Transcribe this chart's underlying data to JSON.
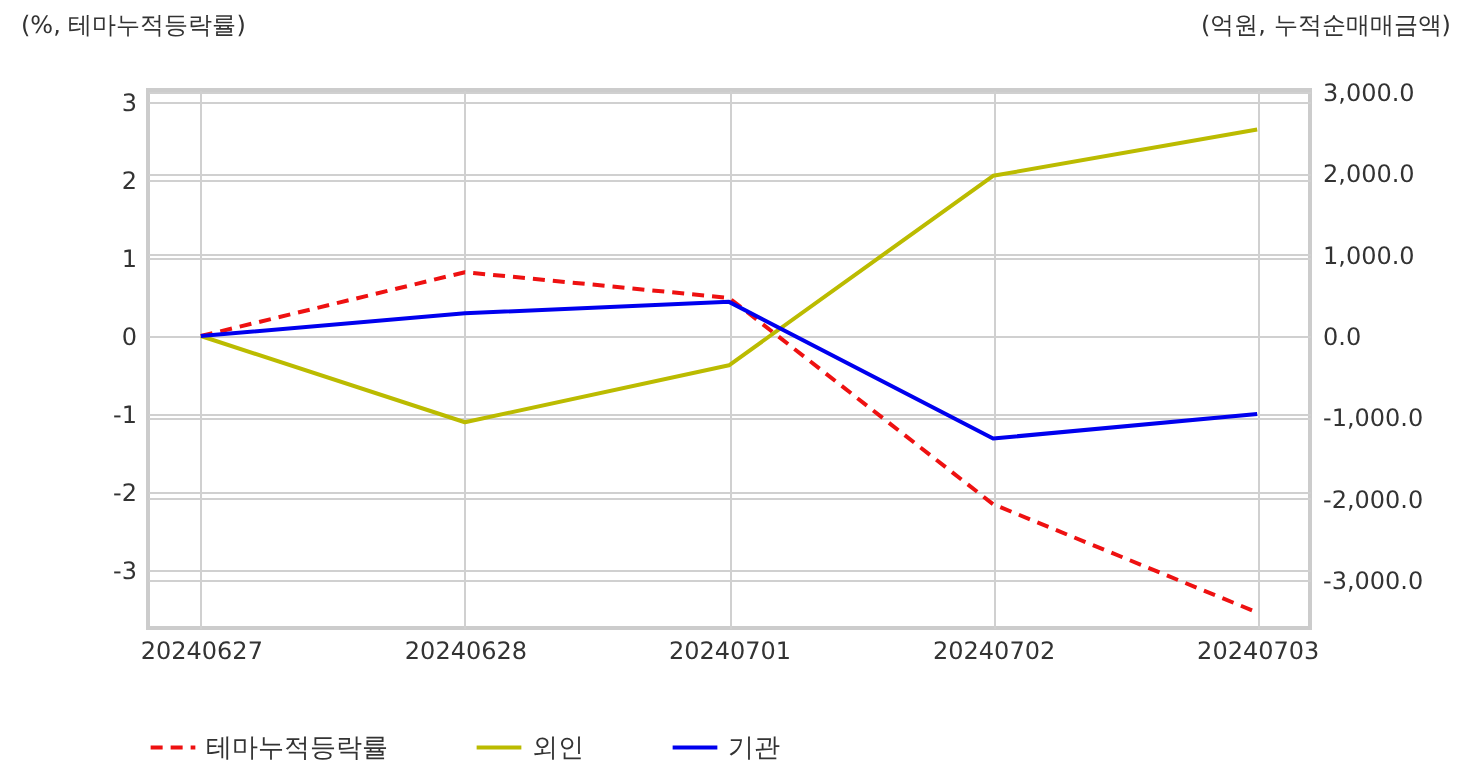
{
  "chart_data": {
    "type": "line",
    "ylabel": "(%, 테마누적등락률)",
    "y2label": "(억원, 누적순매매금액)",
    "categories": [
      "20240627",
      "20240628",
      "20240701",
      "20240702",
      "20240703"
    ],
    "series": [
      {
        "name": "테마누적등락률",
        "color": "#ee1111",
        "line_style": "dashed",
        "values": [
          0,
          0.82,
          0.49,
          -2.16,
          -3.55
        ]
      },
      {
        "name": "외인",
        "color": "#bbbb00",
        "axis": "y2",
        "line_style": "solid",
        "values": [
          0,
          -1060,
          -360,
          1970,
          2540
        ]
      },
      {
        "name": "기관",
        "color": "#0000ee",
        "axis": "y2",
        "line_style": "solid",
        "values": [
          0,
          280,
          420,
          -1260,
          -960
        ]
      }
    ],
    "ylim": [
      -3.75,
      3.16
    ],
    "yticks": [
      -3,
      -2,
      -1,
      0,
      1,
      2,
      3
    ],
    "y2lim": [
      -3590,
      3025
    ],
    "y2ticks": [
      {
        "value": -3000,
        "label": "-3,000.0"
      },
      {
        "value": -2000,
        "label": "-2,000.0"
      },
      {
        "value": -1000,
        "label": "-1,000.0"
      },
      {
        "value": 0,
        "label": "0.0"
      },
      {
        "value": 1000,
        "label": "1,000.0"
      },
      {
        "value": 2000,
        "label": "2,000.0"
      },
      {
        "value": 3000,
        "label": "3,000.0"
      }
    ],
    "grid": true,
    "legend": "bottom",
    "marker": "none"
  }
}
